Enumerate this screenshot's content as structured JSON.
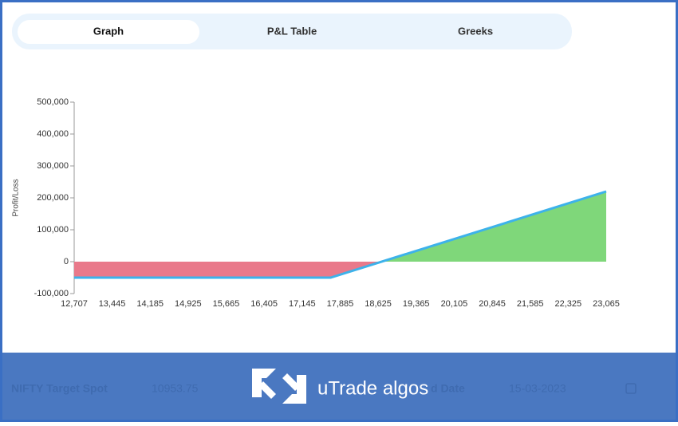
{
  "tabs": [
    "Graph",
    "P&L Table",
    "Greeks"
  ],
  "chart_data": {
    "type": "area",
    "y_label": "Profit/Loss",
    "x": [
      12707,
      17700,
      23065
    ],
    "series": [
      {
        "values": [
          -50000,
          -50000,
          220000
        ],
        "color": "#3db2ea",
        "loss_color": "#e9798a",
        "profit_color": "#7fd77a"
      }
    ],
    "xlim": [
      12707,
      23065
    ],
    "xticks": [
      {
        "value": 12707,
        "label": "12,707"
      },
      {
        "value": 13445,
        "label": "13,445"
      },
      {
        "value": 14185,
        "label": "14,185"
      },
      {
        "value": 14925,
        "label": "14,925"
      },
      {
        "value": 15665,
        "label": "15,665"
      },
      {
        "value": 16405,
        "label": "16,405"
      },
      {
        "value": 17145,
        "label": "17,145"
      },
      {
        "value": 17885,
        "label": "17,885"
      },
      {
        "value": 18625,
        "label": "18,625"
      },
      {
        "value": 19365,
        "label": "19,365"
      },
      {
        "value": 20105,
        "label": "20,105"
      },
      {
        "value": 20845,
        "label": "20,845"
      },
      {
        "value": 21585,
        "label": "21,585"
      },
      {
        "value": 22325,
        "label": "22,325"
      },
      {
        "value": 23065,
        "label": "23,065"
      }
    ],
    "ylim": [
      -100000,
      500000
    ],
    "yticks": [
      {
        "value": -100000,
        "label": "-100,000"
      },
      0,
      {
        "value": 100000,
        "label": "100,000"
      },
      {
        "value": 200000,
        "label": "200,000"
      },
      {
        "value": 300000,
        "label": "300,000"
      },
      {
        "value": 400000,
        "label": "400,000"
      },
      {
        "value": 500000,
        "label": "500,000"
      }
    ]
  },
  "footer": {
    "spot_label": "NIFTY Target Spot",
    "spot_value": "10953.75",
    "date_label": "d Date",
    "date_value": "15-03-2023",
    "logo": "uTrade algos"
  }
}
